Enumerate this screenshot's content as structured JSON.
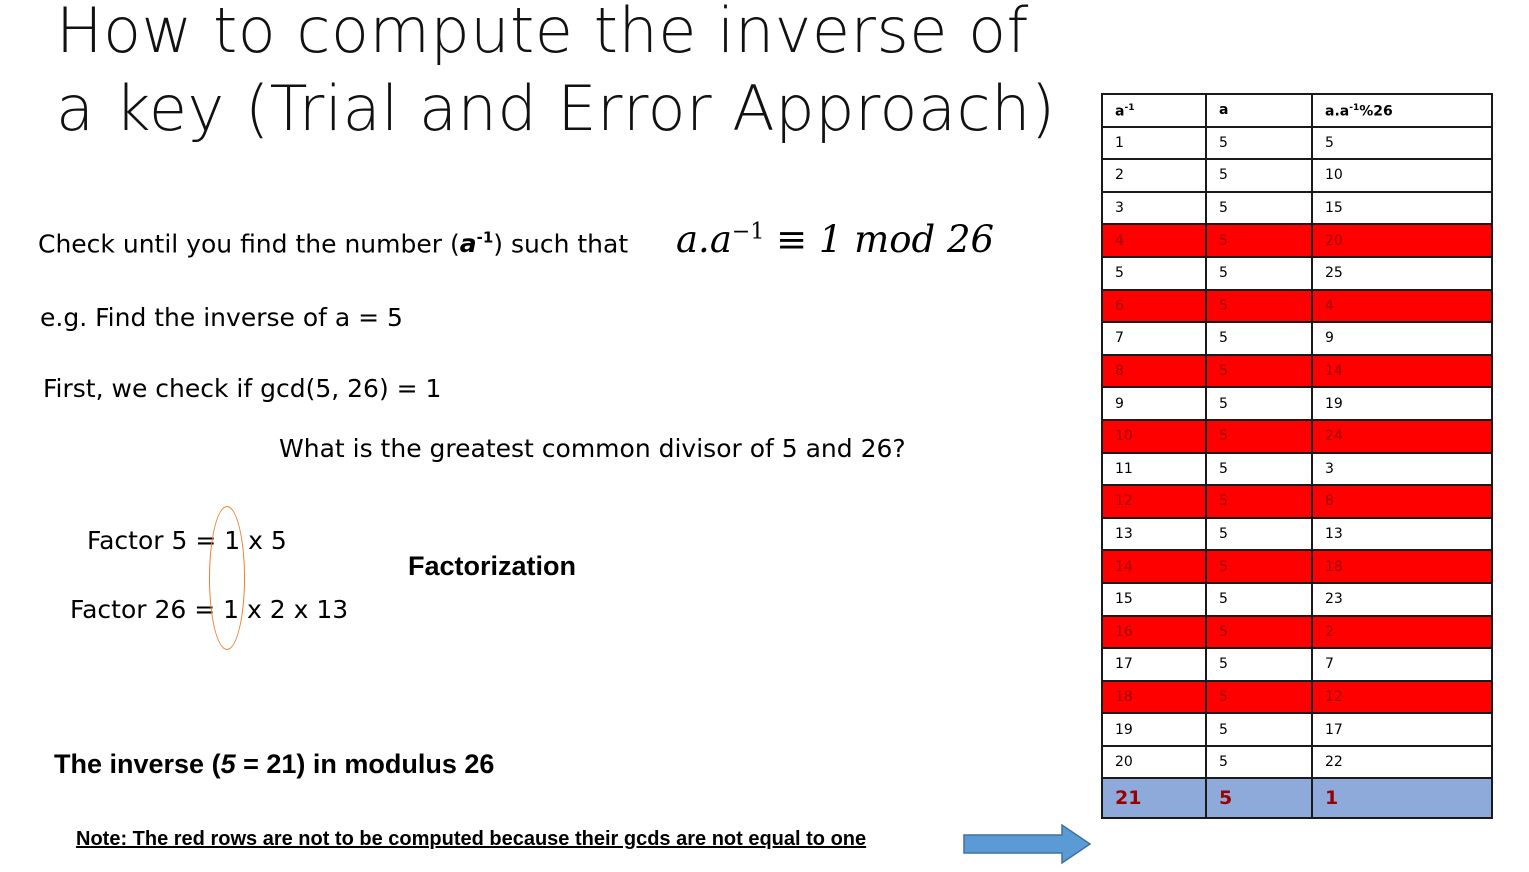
{
  "slide": {
    "title": "How to compute the inverse of a key (Trial and Error Approach)",
    "check_prefix": "Check until you find the number (",
    "check_sym": "a",
    "check_sup": "-1",
    "check_suffix": ") such that",
    "formula_a": "a.a",
    "formula_sup": "−1",
    "formula_rest": " ≡ 1 mod 26",
    "example": "e.g. Find the inverse of a = 5",
    "gcd_check": "First, we check if gcd(5, 26) = 1",
    "question": "What is the greatest common divisor of 5 and 26?",
    "factor5": "Factor 5 = 1 x 5",
    "factor26": "Factor 26 = 1 x 2 x 13",
    "factorization": "Factorization",
    "inverse_prefix": "The inverse (",
    "inverse_italic": "5",
    "inverse_suffix": " = 21) in modulus 26",
    "note": "Note: The red rows are not to be computed because their gcds are not equal to one"
  },
  "table": {
    "headers": [
      "a",
      "a",
      "a.a",
      "%26"
    ],
    "header_sup": "-1",
    "rows": [
      [
        "1",
        "5",
        "5"
      ],
      [
        "2",
        "5",
        "10"
      ],
      [
        "3",
        "5",
        "15"
      ],
      [
        "4",
        "5",
        "20"
      ],
      [
        "5",
        "5",
        "25"
      ],
      [
        "6",
        "5",
        "4"
      ],
      [
        "7",
        "5",
        "9"
      ],
      [
        "8",
        "5",
        "14"
      ],
      [
        "9",
        "5",
        "19"
      ],
      [
        "10",
        "5",
        "24"
      ],
      [
        "11",
        "5",
        "3"
      ],
      [
        "12",
        "5",
        "8"
      ],
      [
        "13",
        "5",
        "13"
      ],
      [
        "14",
        "5",
        "18"
      ],
      [
        "15",
        "5",
        "23"
      ],
      [
        "16",
        "5",
        "2"
      ],
      [
        "17",
        "5",
        "7"
      ],
      [
        "18",
        "5",
        "12"
      ],
      [
        "19",
        "5",
        "17"
      ],
      [
        "20",
        "5",
        "22"
      ],
      [
        "21",
        "5",
        "1"
      ]
    ]
  },
  "colors": {
    "red_row": "#ff0000",
    "answer_row": "#8eaadb",
    "arrow": "#5b9bd5",
    "ellipse": "#ed7d31"
  }
}
